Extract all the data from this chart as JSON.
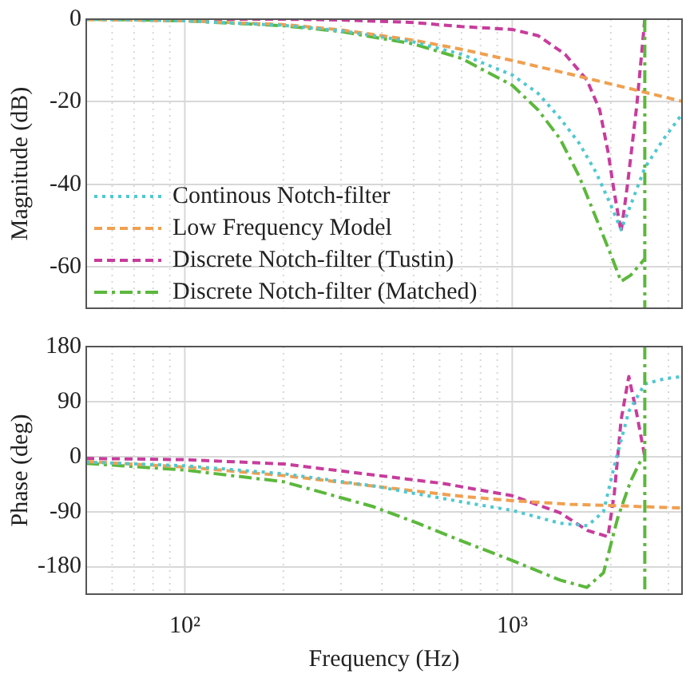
{
  "chart_data": [
    {
      "type": "line",
      "ylabel": "Magnitude (dB)",
      "log": "x",
      "grid": true,
      "legend": "bottom left",
      "tick_labels": "y",
      "xlim": [
        50,
        3300
      ],
      "ylim": [
        -70,
        0
      ],
      "yticks": [
        0,
        -20,
        -40,
        -60
      ],
      "xticks": [
        {
          "value": 50,
          "label": null
        },
        {
          "value": 60,
          "label": null
        },
        {
          "value": 70,
          "label": null
        },
        {
          "value": 80,
          "label": null
        },
        {
          "value": 90,
          "label": null
        },
        100,
        {
          "value": 200,
          "label": null
        },
        {
          "value": 300,
          "label": null
        },
        {
          "value": 400,
          "label": null
        },
        {
          "value": 500,
          "label": null
        },
        {
          "value": 600,
          "label": null
        },
        {
          "value": 700,
          "label": null
        },
        {
          "value": 800,
          "label": null
        },
        {
          "value": 900,
          "label": null
        },
        1000,
        {
          "value": 2000,
          "label": null
        },
        {
          "value": 3000,
          "label": null
        }
      ],
      "ref_lines": [
        {
          "axis": "x",
          "value": 2540,
          "color": "#5cb83c",
          "line_style": "dashdot"
        }
      ],
      "series": [
        {
          "name": "Continous Notch-filter",
          "color": "#4fc8d0",
          "line_style": "dotted",
          "x": [
            50,
            100,
            200,
            300,
            500,
            700,
            1000,
            1200,
            1400,
            1600,
            1800,
            2000,
            2150,
            2300,
            2540,
            2900,
            3300
          ],
          "values": [
            0,
            -0.4,
            -1.5,
            -2.8,
            -5.5,
            -8.5,
            -13.5,
            -18,
            -24,
            -30,
            -37,
            -45,
            -51,
            -45,
            -36,
            -29,
            -23
          ]
        },
        {
          "name": "Low Frequency Model",
          "color": "#f0a050",
          "line_style": "dashed",
          "x": [
            50,
            100,
            200,
            300,
            500,
            700,
            1000,
            1500,
            2000,
            2540,
            3300
          ],
          "values": [
            -0.1,
            -0.4,
            -1.3,
            -2.6,
            -5.1,
            -7.3,
            -10,
            -13.3,
            -15.7,
            -17.7,
            -19.9
          ]
        },
        {
          "name": "Discrete Notch-filter (Tustin)",
          "color": "#c83c9c",
          "line_style": "dashed",
          "x": [
            50,
            100,
            200,
            300,
            500,
            700,
            1000,
            1200,
            1450,
            1690,
            1850,
            1960,
            2050,
            2150,
            2250,
            2400,
            2500,
            2540
          ],
          "values": [
            0,
            0,
            0,
            -0.2,
            -0.8,
            -1.8,
            -2.5,
            -4,
            -8.5,
            -14.7,
            -22,
            -32,
            -42,
            -51.5,
            -40,
            -21,
            -6,
            0
          ]
        },
        {
          "name": "Discrete Notch-filter (Matched)",
          "color": "#5cb83c",
          "line_style": "dashdot",
          "x": [
            50,
            100,
            200,
            300,
            500,
            700,
            1000,
            1200,
            1400,
            1600,
            1800,
            2000,
            2150,
            2300,
            2480,
            2540
          ],
          "values": [
            0,
            -0.4,
            -1.6,
            -3,
            -6,
            -9.5,
            -16,
            -22,
            -29,
            -38,
            -48,
            -57,
            -63.5,
            -62,
            -59,
            -58
          ]
        }
      ]
    },
    {
      "type": "line",
      "ylabel": "Phase (deg)",
      "xlabel": "Frequency (Hz)",
      "log": "x",
      "grid": true,
      "xlim": [
        50,
        3300
      ],
      "ylim": [
        -225,
        180
      ],
      "yticks": [
        180,
        90,
        0,
        -90,
        -180
      ],
      "xticks": [
        {
          "value": 50,
          "label": null
        },
        {
          "value": 60,
          "label": null
        },
        {
          "value": 70,
          "label": null
        },
        {
          "value": 80,
          "label": null
        },
        {
          "value": 90,
          "label": null
        },
        {
          "value": 100,
          "label": "10²"
        },
        {
          "value": 200,
          "label": null
        },
        {
          "value": 300,
          "label": null
        },
        {
          "value": 400,
          "label": null
        },
        {
          "value": 500,
          "label": null
        },
        {
          "value": 600,
          "label": null
        },
        {
          "value": 700,
          "label": null
        },
        {
          "value": 800,
          "label": null
        },
        {
          "value": 900,
          "label": null
        },
        {
          "value": 1000,
          "label": "10³"
        },
        {
          "value": 2000,
          "label": null
        },
        {
          "value": 3000,
          "label": null
        }
      ],
      "ref_lines": [
        {
          "axis": "x",
          "value": 2540,
          "color": "#5cb83c",
          "line_style": "dashdot"
        }
      ],
      "series": [
        {
          "color": "#4fc8d0",
          "line_style": "dotted",
          "x": [
            50,
            100,
            200,
            377,
            500,
            700,
            1000,
            1400,
            1700,
            1900,
            2050,
            2270,
            2540,
            2900,
            3300
          ],
          "values": [
            -9,
            -15,
            -28,
            -48,
            -60,
            -74,
            -88,
            -109,
            -113,
            -90,
            -15,
            74,
            119,
            127,
            131
          ]
        },
        {
          "color": "#f0a050",
          "line_style": "dashed",
          "x": [
            50,
            100,
            200,
            300,
            500,
            700,
            1000,
            1500,
            2000,
            2540,
            3300
          ],
          "values": [
            -8,
            -17,
            -31,
            -42,
            -56,
            -65,
            -72,
            -78,
            -80,
            -82,
            -84
          ]
        },
        {
          "color": "#c83c9c",
          "line_style": "dashed",
          "x": [
            50,
            100,
            200,
            377,
            616,
            1000,
            1400,
            1700,
            1960,
            2050,
            2150,
            2270,
            2400,
            2540
          ],
          "values": [
            -3,
            -5,
            -12,
            -30,
            -44,
            -64,
            -92,
            -121,
            -131,
            -60,
            60,
            131,
            70,
            0
          ]
        },
        {
          "color": "#5cb83c",
          "line_style": "dashdot",
          "x": [
            50,
            100,
            200,
            377,
            509,
            700,
            1000,
            1400,
            1690,
            1900,
            2100,
            2300,
            2450,
            2540
          ],
          "values": [
            -11,
            -22,
            -41,
            -82,
            -108,
            -138,
            -170,
            -202,
            -214,
            -190,
            -100,
            -40,
            -10,
            0
          ]
        }
      ]
    }
  ]
}
